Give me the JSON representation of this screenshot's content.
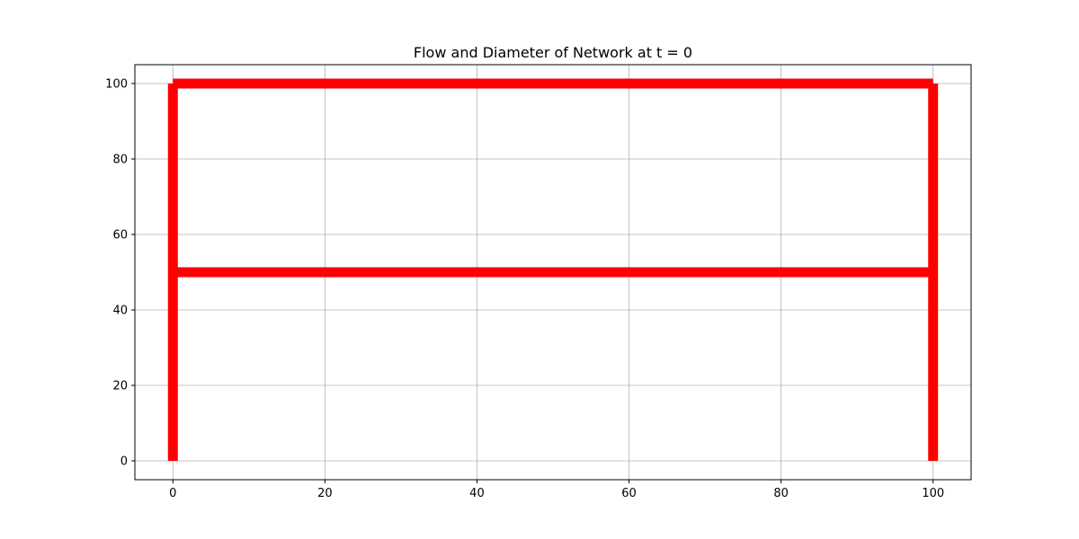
{
  "chart_data": {
    "type": "line",
    "title": "Flow and Diameter of Network at t = 0",
    "xlabel": "",
    "ylabel": "",
    "xlim": [
      -5,
      105
    ],
    "ylim": [
      -5,
      105
    ],
    "xticks": [
      0,
      20,
      40,
      60,
      80,
      100
    ],
    "yticks": [
      0,
      20,
      40,
      60,
      80,
      100
    ],
    "xtick_labels": [
      "0",
      "20",
      "40",
      "60",
      "80",
      "100"
    ],
    "ytick_labels": [
      "0",
      "20",
      "40",
      "60",
      "80",
      "100"
    ],
    "grid": true,
    "series": [
      {
        "x": [
          0,
          0
        ],
        "y": [
          0,
          50
        ],
        "color": "#ff0000"
      },
      {
        "x": [
          0,
          0
        ],
        "y": [
          50,
          100
        ],
        "color": "#ff0000"
      },
      {
        "x": [
          0,
          100
        ],
        "y": [
          50,
          50
        ],
        "color": "#ff0000"
      },
      {
        "x": [
          0,
          100
        ],
        "y": [
          100,
          100
        ],
        "color": "#ff0000"
      },
      {
        "x": [
          100,
          100
        ],
        "y": [
          0,
          50
        ],
        "color": "#ff0000"
      },
      {
        "x": [
          100,
          100
        ],
        "y": [
          50,
          100
        ],
        "color": "#ff0000"
      }
    ]
  },
  "colors": {
    "line": "#ff0000",
    "grid": "#b0b0b0",
    "axes": "#000000"
  }
}
